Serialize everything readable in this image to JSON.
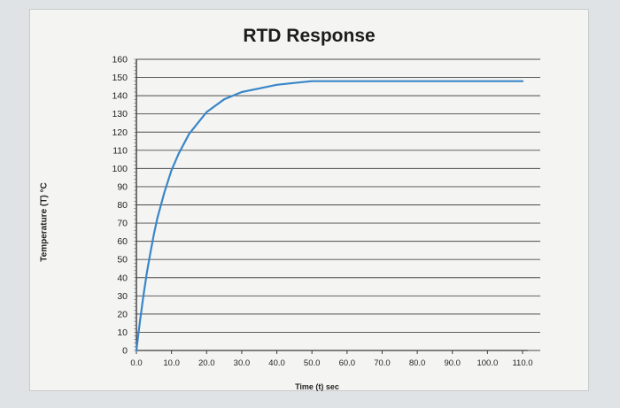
{
  "chart_data": {
    "type": "line",
    "title": "RTD Response",
    "xlabel": "Time (t) sec",
    "ylabel": "Temperature (T) °C",
    "xlim": [
      0,
      110
    ],
    "ylim": [
      0,
      160
    ],
    "x_ticks": [
      "0.0",
      "10.0",
      "20.0",
      "30.0",
      "40.0",
      "50.0",
      "60.0",
      "70.0",
      "80.0",
      "90.0",
      "100.0",
      "110.0"
    ],
    "y_ticks": [
      "0",
      "10",
      "20",
      "30",
      "40",
      "50",
      "60",
      "70",
      "80",
      "90",
      "100",
      "110",
      "120",
      "130",
      "140",
      "150",
      "160"
    ],
    "grid": "horizontal",
    "legend": "none",
    "series": [
      {
        "color": "#3a86c8",
        "x": [
          0,
          1,
          2,
          3,
          4,
          5,
          6,
          8,
          10,
          12,
          15,
          20,
          25,
          30,
          35,
          40,
          45,
          50,
          60,
          70,
          80,
          90,
          100,
          110
        ],
        "values": [
          0,
          16,
          30,
          43,
          54,
          64,
          73,
          87,
          99,
          108,
          119,
          131,
          138,
          142,
          144,
          146,
          147,
          148,
          148,
          148,
          148,
          148,
          148,
          148
        ]
      }
    ]
  }
}
